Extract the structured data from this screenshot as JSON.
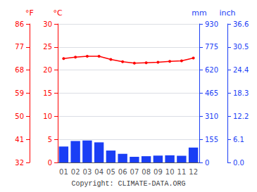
{
  "chart_data": {
    "type": "bar",
    "categories": [
      "01",
      "02",
      "03",
      "04",
      "05",
      "06",
      "07",
      "08",
      "09",
      "10",
      "11",
      "12"
    ],
    "ylabel": "°C",
    "ylim": [
      0,
      30
    ],
    "yticks": [
      0,
      5,
      10,
      15,
      20,
      25,
      30
    ],
    "y2label": "mm",
    "y2lim": [
      0,
      930
    ],
    "y2ticks": [
      0,
      155,
      310,
      465,
      620,
      775,
      930
    ],
    "y3label": "°F",
    "y3lim": [
      32,
      86
    ],
    "y3ticks": [
      32,
      41,
      50,
      59,
      68,
      77,
      86
    ],
    "y4label": "inch",
    "y4lim": [
      0,
      36.6
    ],
    "y4ticks": [
      {
        "value": 0,
        "label": "0.0"
      },
      6.1,
      12.2,
      18.3,
      24.4,
      30.5,
      36.6
    ],
    "grid": true,
    "annotation": "Copyright: CLIMATE-DATA.ORG",
    "series": [
      {
        "type": "bar",
        "axis": "y2",
        "color": "#1a3ef5",
        "values": [
          107,
          144,
          147,
          135,
          80,
          58,
          38,
          42,
          46,
          48,
          45,
          100
        ]
      },
      {
        "type": "line",
        "color": "#ff0000",
        "marker": "circle",
        "values": [
          22.5,
          22.8,
          23.0,
          23.0,
          22.3,
          21.8,
          21.5,
          21.6,
          21.7,
          21.9,
          22.0,
          22.6
        ]
      }
    ]
  }
}
